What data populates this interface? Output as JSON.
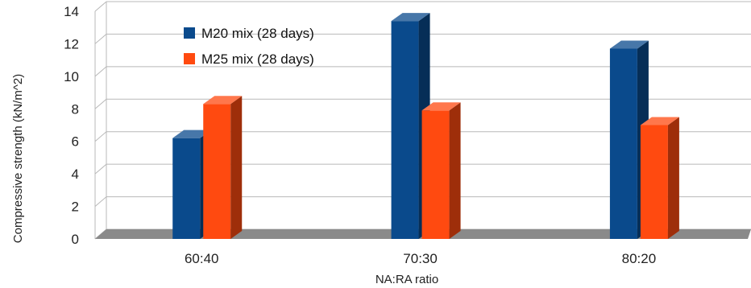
{
  "chart_data": {
    "type": "bar",
    "title": "",
    "categories": [
      "60:40",
      "70:30",
      "80:20"
    ],
    "series": [
      {
        "name": "M20 mix (28 days)",
        "values": [
          6.2,
          13.4,
          11.7
        ],
        "color": "#0a4a8c"
      },
      {
        "name": "M25 mix (28 days)",
        "values": [
          8.3,
          7.9,
          7.0
        ],
        "color": "#ff4a10"
      }
    ],
    "xlabel": "NA:RA ratio",
    "ylabel": "Compressive strength (kN/m^2)",
    "ylim": [
      0,
      14
    ],
    "yticks": [
      0,
      2,
      4,
      6,
      8,
      10,
      12,
      14
    ],
    "grid": true,
    "legend": "top-center"
  }
}
